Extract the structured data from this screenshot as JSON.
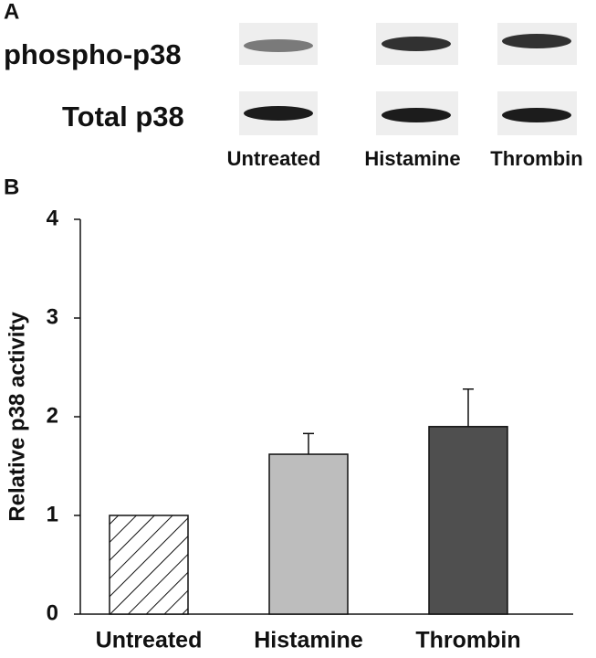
{
  "panel_a": {
    "label": "A",
    "rows": [
      "phospho-p38",
      "Total p38"
    ],
    "lanes": [
      "Untreated",
      "Histamine",
      "Thrombin"
    ]
  },
  "chart_data": {
    "type": "bar",
    "panel_label": "B",
    "y_label": "Relative p38 activity",
    "categories": [
      "Untreated",
      "Histamine",
      "Thrombin"
    ],
    "values": [
      1.0,
      1.62,
      1.9
    ],
    "errors": [
      0,
      0.21,
      0.38
    ],
    "colors": [
      "#ffffff",
      "#bdbdbd",
      "#4f4f4f"
    ],
    "hatched": [
      true,
      false,
      false
    ],
    "ylim": [
      0,
      4
    ],
    "yticks": [
      0,
      1,
      2,
      3,
      4
    ],
    "grid": false
  }
}
